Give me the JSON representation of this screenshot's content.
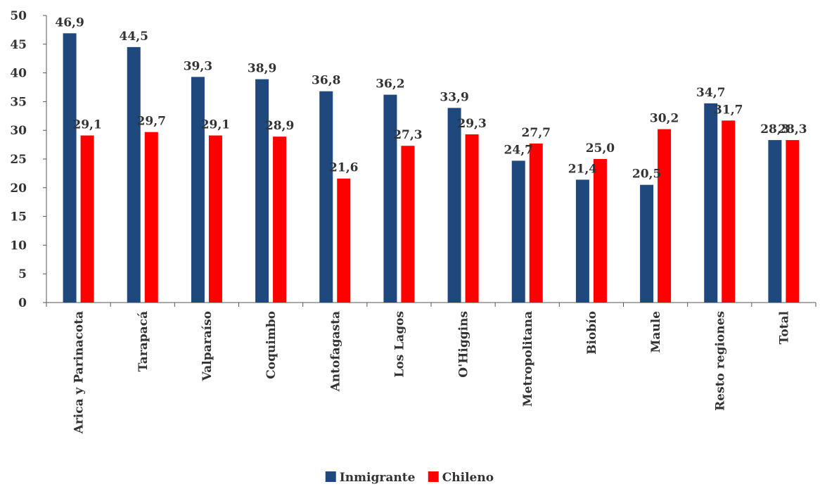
{
  "chart_data": {
    "type": "bar",
    "title": "",
    "xlabel": "",
    "ylabel": "",
    "ylim": [
      0,
      50
    ],
    "yticks": [
      0,
      5,
      10,
      15,
      20,
      25,
      30,
      35,
      40,
      45,
      50
    ],
    "grid": false,
    "legend_position": "bottom",
    "categories": [
      "Arica y Parinacota",
      "Tarapacá",
      "Valparaíso",
      "Coquimbo",
      "Antofagasta",
      "Los Lagos",
      "O'Higgins",
      "Metropolitana",
      "Biobío",
      "Maule",
      "Resto regiones",
      "Total"
    ],
    "series": [
      {
        "name": "Inmigrante",
        "color": "#1F497D",
        "values": [
          46.9,
          44.5,
          39.3,
          38.9,
          36.8,
          36.2,
          33.9,
          24.7,
          21.4,
          20.5,
          34.7,
          28.3
        ],
        "labels": [
          "46,9",
          "44,5",
          "39,3",
          "38,9",
          "36,8",
          "36,2",
          "33,9",
          "24,7",
          "21,4",
          "20,5",
          "34,7",
          "28,3"
        ]
      },
      {
        "name": "Chileno",
        "color": "#FF0000",
        "values": [
          29.1,
          29.7,
          29.1,
          28.9,
          21.6,
          27.3,
          29.3,
          27.7,
          25.0,
          30.2,
          31.7,
          28.3
        ],
        "labels": [
          "29,1",
          "29,7",
          "29,1",
          "28,9",
          "21,6",
          "27,3",
          "29,3",
          "27,7",
          "25,0",
          "30,2",
          "31,7",
          "28,3"
        ]
      }
    ]
  }
}
